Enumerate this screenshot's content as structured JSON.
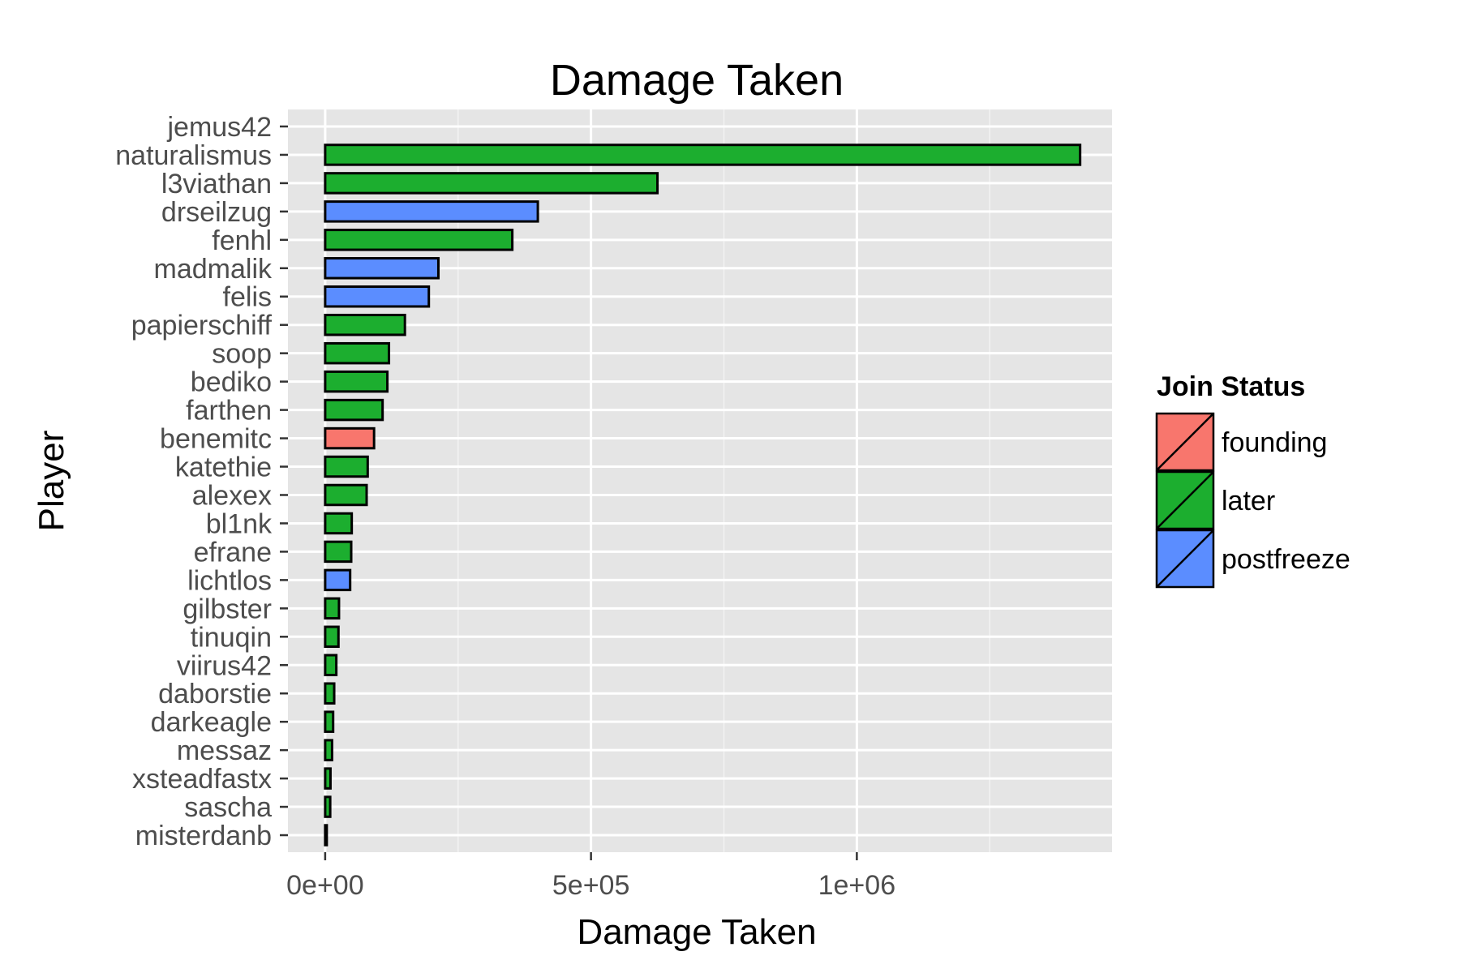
{
  "chart_data": {
    "type": "bar",
    "orientation": "horizontal",
    "title": "Damage Taken",
    "xlabel": "Damage Taken",
    "ylabel": "Player",
    "xlim": [
      -70000,
      1480000
    ],
    "x_ticks": [
      {
        "value": 0,
        "label": "0e+00"
      },
      {
        "value": 500000,
        "label": "5e+05"
      },
      {
        "value": 1000000,
        "label": "1e+06"
      }
    ],
    "x_minor_ticks": [
      250000,
      750000,
      1250000
    ],
    "grid": true,
    "legend": {
      "title": "Join Status",
      "position": "right",
      "entries": [
        {
          "key": "founding",
          "label": "founding",
          "color": "#F8766D"
        },
        {
          "key": "later",
          "label": "later",
          "color": "#1CAE2F"
        },
        {
          "key": "postfreeze",
          "label": "postfreeze",
          "color": "#5B8DFF"
        }
      ]
    },
    "categories": [
      "jemus42",
      "naturalismus",
      "l3viathan",
      "drseilzug",
      "fenhl",
      "madmalik",
      "felis",
      "papierschiff",
      "soop",
      "bediko",
      "farthen",
      "benemitc",
      "katethie",
      "alexex",
      "bl1nk",
      "efrane",
      "lichtlos",
      "gilbster",
      "tinuqin",
      "viirus42",
      "daborstie",
      "darkeagle",
      "messaz",
      "xsteadfastx",
      "sascha",
      "misterdanb"
    ],
    "values": [
      0,
      1420000,
      625000,
      400000,
      352000,
      213000,
      195000,
      150000,
      120000,
      117000,
      108000,
      92000,
      80000,
      78000,
      50000,
      49000,
      47000,
      26000,
      25000,
      21000,
      17000,
      15000,
      13000,
      10000,
      9500,
      3000
    ],
    "status": [
      "later",
      "later",
      "later",
      "postfreeze",
      "later",
      "postfreeze",
      "postfreeze",
      "later",
      "later",
      "later",
      "later",
      "founding",
      "later",
      "later",
      "later",
      "later",
      "postfreeze",
      "later",
      "later",
      "later",
      "later",
      "later",
      "later",
      "later",
      "later",
      "later"
    ]
  }
}
